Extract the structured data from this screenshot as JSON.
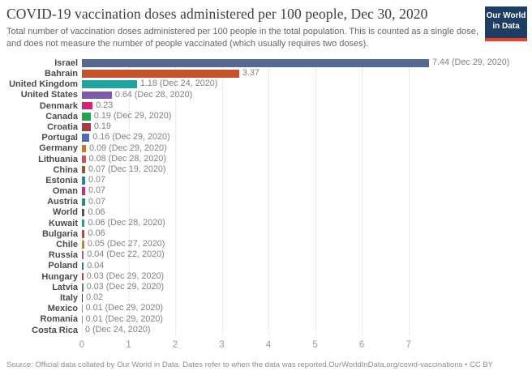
{
  "chart_data": {
    "type": "bar",
    "orientation": "horizontal",
    "title": "COVID-19 vaccination doses administered per 100 people, Dec 30, 2020",
    "subtitle": "Total number of vaccination doses administered per 100 people in the total population. This is counted as a single dose, and does not measure the number of people vaccinated (which usually requires two doses).",
    "xlabel": "",
    "ylabel": "",
    "xlim": [
      0,
      9.44
    ],
    "axis_ticks": [
      0,
      1,
      2,
      3,
      4,
      5,
      6,
      7
    ],
    "grid": "dotted-vertical",
    "legend": "none",
    "categories": [
      "Israel",
      "Bahrain",
      "United Kingdom",
      "United States",
      "Denmark",
      "Canada",
      "Croatia",
      "Portugal",
      "Germany",
      "Lithuania",
      "China",
      "Estonia",
      "Oman",
      "Austria",
      "World",
      "Kuwait",
      "Bulgaria",
      "Chile",
      "Russia",
      "Poland",
      "Hungary",
      "Latvia",
      "Italy",
      "Mexico",
      "Romania",
      "Costa Rica"
    ],
    "values": [
      7.44,
      3.37,
      1.18,
      0.64,
      0.23,
      0.19,
      0.19,
      0.16,
      0.09,
      0.08,
      0.07,
      0.07,
      0.07,
      0.07,
      0.06,
      0.06,
      0.06,
      0.05,
      0.04,
      0.04,
      0.03,
      0.03,
      0.02,
      0.01,
      0.01,
      0
    ],
    "rows": [
      {
        "country": "Israel",
        "value": 7.44,
        "value_label": "7.44 (Dec 29, 2020)",
        "color": "#556890"
      },
      {
        "country": "Bahrain",
        "value": 3.37,
        "value_label": "3.37",
        "color": "#c5542c"
      },
      {
        "country": "United Kingdom",
        "value": 1.18,
        "value_label": "1.18 (Dec 24, 2020)",
        "color": "#1ea59d"
      },
      {
        "country": "United States",
        "value": 0.64,
        "value_label": "0.64 (Dec 28, 2020)",
        "color": "#7d5ca7"
      },
      {
        "country": "Denmark",
        "value": 0.23,
        "value_label": "0.23",
        "color": "#d42476"
      },
      {
        "country": "Canada",
        "value": 0.19,
        "value_label": "0.19 (Dec 29, 2020)",
        "color": "#23a14f"
      },
      {
        "country": "Croatia",
        "value": 0.19,
        "value_label": "0.19",
        "color": "#a23c46"
      },
      {
        "country": "Portugal",
        "value": 0.16,
        "value_label": "0.16 (Dec 29, 2020)",
        "color": "#4d6bb2"
      },
      {
        "country": "Germany",
        "value": 0.09,
        "value_label": "0.09 (Dec 29, 2020)",
        "color": "#cb732b"
      },
      {
        "country": "Lithuania",
        "value": 0.08,
        "value_label": "0.08 (Dec 28, 2020)",
        "color": "#d14f5c"
      },
      {
        "country": "China",
        "value": 0.07,
        "value_label": "0.07 (Dec 19, 2020)",
        "color": "#91562b"
      },
      {
        "country": "Estonia",
        "value": 0.07,
        "value_label": "0.07",
        "color": "#2d81ad"
      },
      {
        "country": "Oman",
        "value": 0.07,
        "value_label": "0.07",
        "color": "#cf2d7f"
      },
      {
        "country": "Austria",
        "value": 0.07,
        "value_label": "0.07",
        "color": "#2d8a6e"
      },
      {
        "country": "World",
        "value": 0.06,
        "value_label": "0.06",
        "color": "#555555"
      },
      {
        "country": "Kuwait",
        "value": 0.06,
        "value_label": "0.06 (Dec 28, 2020)",
        "color": "#1da18b"
      },
      {
        "country": "Bulgaria",
        "value": 0.06,
        "value_label": "0.06",
        "color": "#c43b4f"
      },
      {
        "country": "Chile",
        "value": 0.05,
        "value_label": "0.05 (Dec 27, 2020)",
        "color": "#b3862f"
      },
      {
        "country": "Russia",
        "value": 0.04,
        "value_label": "0.04 (Dec 22, 2020)",
        "color": "#96609d"
      },
      {
        "country": "Poland",
        "value": 0.04,
        "value_label": "0.04",
        "color": "#39709c"
      },
      {
        "country": "Hungary",
        "value": 0.03,
        "value_label": "0.03 (Dec 29, 2020)",
        "color": "#c03845"
      },
      {
        "country": "Latvia",
        "value": 0.03,
        "value_label": "0.03 (Dec 29, 2020)",
        "color": "#4e8d56"
      },
      {
        "country": "Italy",
        "value": 0.02,
        "value_label": "0.02",
        "color": "#3d3d4d"
      },
      {
        "country": "Mexico",
        "value": 0.01,
        "value_label": "0.01 (Dec 29, 2020)",
        "color": "#888888"
      },
      {
        "country": "Romania",
        "value": 0.01,
        "value_label": "0.01 (Dec 29, 2020)",
        "color": "#888888"
      },
      {
        "country": "Costa Rica",
        "value": 0,
        "value_label": "0 (Dec 24, 2020)",
        "color": "#888888"
      }
    ]
  },
  "logo": {
    "line1": "Our World",
    "line2": "in Data",
    "bg_color": "#1d3d63",
    "accent_color": "#e8402a"
  },
  "footer": {
    "text": "Source: Official data collated by Our World in Data. Dates refer to when the data was reported.OurWorldInData.org/covid-vaccinations • CC BY"
  }
}
